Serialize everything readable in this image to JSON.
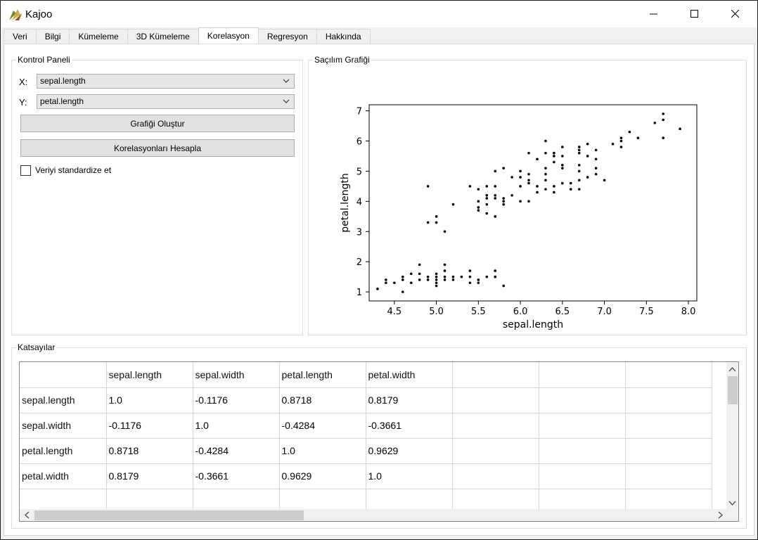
{
  "app": {
    "title": "Kajoo"
  },
  "window_controls": {
    "minimize": "minimize-icon",
    "maximize": "maximize-icon",
    "close": "close-icon"
  },
  "tabs": [
    {
      "label": "Veri",
      "active": false
    },
    {
      "label": "Bilgi",
      "active": false
    },
    {
      "label": "Kümeleme",
      "active": false
    },
    {
      "label": "3D Kümeleme",
      "active": false
    },
    {
      "label": "Korelasyon",
      "active": true
    },
    {
      "label": "Regresyon",
      "active": false
    },
    {
      "label": "Hakkında",
      "active": false
    }
  ],
  "control_panel": {
    "title": "Kontrol Paneli",
    "x_label": "X:",
    "x_value": "sepal.length",
    "y_label": "Y:",
    "y_value": "petal.length",
    "plot_button": "Grafiği Oluştur",
    "corr_button": "Korelasyonları Hesapla",
    "standardize_label": "Veriyi standardize et",
    "standardize_checked": false
  },
  "scatter_panel": {
    "title": "Saçılım Grafiği"
  },
  "chart_data": {
    "type": "scatter",
    "title": "",
    "xlabel": "sepal.length",
    "ylabel": "petal.length",
    "xlim": [
      4.2,
      8.1
    ],
    "ylim": [
      0.7,
      7.2
    ],
    "xticks": [
      "4.5",
      "5.0",
      "5.5",
      "6.0",
      "6.5",
      "7.0",
      "7.5",
      "8.0"
    ],
    "yticks": [
      "1",
      "2",
      "3",
      "4",
      "5",
      "6",
      "7"
    ],
    "grid": false,
    "x": [
      4.3,
      4.4,
      4.4,
      4.5,
      4.6,
      4.6,
      4.6,
      4.7,
      4.7,
      4.8,
      4.8,
      4.8,
      4.9,
      4.9,
      5.0,
      5.0,
      5.0,
      5.0,
      5.0,
      5.1,
      5.1,
      5.1,
      5.1,
      5.2,
      5.2,
      5.3,
      5.4,
      5.4,
      5.4,
      5.5,
      5.5,
      5.6,
      5.7,
      5.7,
      5.7,
      5.8,
      4.9,
      4.9,
      5.0,
      5.0,
      5.1,
      5.2,
      5.4,
      5.5,
      5.5,
      5.5,
      5.5,
      5.6,
      5.6,
      5.6,
      5.6,
      5.6,
      5.7,
      5.7,
      5.7,
      5.7,
      5.7,
      5.8,
      5.8,
      5.8,
      5.8,
      5.9,
      5.9,
      6.0,
      6.0,
      6.0,
      6.0,
      6.1,
      6.1,
      6.1,
      6.1,
      6.2,
      6.2,
      6.3,
      6.3,
      6.3,
      6.4,
      6.4,
      6.5,
      6.5,
      6.6,
      6.6,
      6.7,
      6.7,
      6.7,
      6.8,
      6.9,
      6.9,
      7.0,
      6.1,
      6.2,
      6.3,
      6.3,
      6.3,
      6.4,
      6.4,
      6.4,
      6.4,
      6.5,
      6.5,
      6.5,
      6.7,
      6.7,
      6.7,
      6.7,
      6.8,
      6.8,
      6.9,
      6.9,
      7.1,
      7.2,
      7.2,
      7.2,
      7.3,
      7.4,
      7.6,
      7.7,
      7.7,
      7.7,
      7.9
    ],
    "y": [
      1.1,
      1.3,
      1.4,
      1.3,
      1.0,
      1.4,
      1.5,
      1.3,
      1.6,
      1.4,
      1.6,
      1.9,
      1.4,
      1.5,
      1.2,
      1.3,
      1.4,
      1.5,
      1.6,
      1.4,
      1.5,
      1.7,
      1.9,
      1.4,
      1.5,
      1.5,
      1.3,
      1.5,
      1.7,
      1.3,
      1.4,
      1.5,
      1.5,
      1.7,
      1.5,
      1.2,
      3.3,
      4.5,
      3.3,
      3.5,
      3.0,
      3.9,
      4.5,
      3.7,
      3.8,
      4.0,
      4.4,
      3.6,
      3.9,
      4.1,
      4.2,
      4.5,
      3.5,
      4.1,
      4.2,
      4.5,
      5.0,
      3.9,
      4.0,
      4.1,
      5.1,
      4.2,
      4.8,
      4.0,
      4.5,
      4.8,
      5.0,
      4.0,
      4.6,
      4.7,
      4.9,
      4.3,
      4.5,
      4.4,
      4.7,
      4.9,
      4.3,
      4.5,
      4.6,
      5.1,
      4.4,
      4.6,
      4.4,
      4.7,
      5.0,
      4.8,
      4.9,
      5.1,
      4.7,
      5.6,
      5.4,
      5.6,
      5.1,
      6.0,
      5.3,
      5.5,
      5.6,
      5.6,
      5.5,
      5.8,
      5.2,
      5.7,
      5.8,
      5.6,
      5.2,
      5.9,
      5.5,
      5.7,
      5.4,
      5.9,
      6.1,
      5.8,
      6.0,
      6.3,
      6.1,
      6.6,
      6.7,
      6.1,
      6.9,
      6.4
    ]
  },
  "coef_panel": {
    "title": "Katsayılar",
    "columns": [
      "",
      "sepal.length",
      "sepal.width",
      "petal.length",
      "petal.width",
      "",
      "",
      ""
    ],
    "rows": [
      {
        "label": "sepal.length",
        "values": [
          "1.0",
          "-0.1176",
          "0.8718",
          "0.8179"
        ]
      },
      {
        "label": "sepal.width",
        "values": [
          "-0.1176",
          "1.0",
          "-0.4284",
          "-0.3661"
        ]
      },
      {
        "label": "petal.length",
        "values": [
          "0.8718",
          "-0.4284",
          "1.0",
          "0.9629"
        ]
      },
      {
        "label": "petal.width",
        "values": [
          "0.8179",
          "-0.3661",
          "0.9629",
          "1.0"
        ]
      }
    ]
  }
}
